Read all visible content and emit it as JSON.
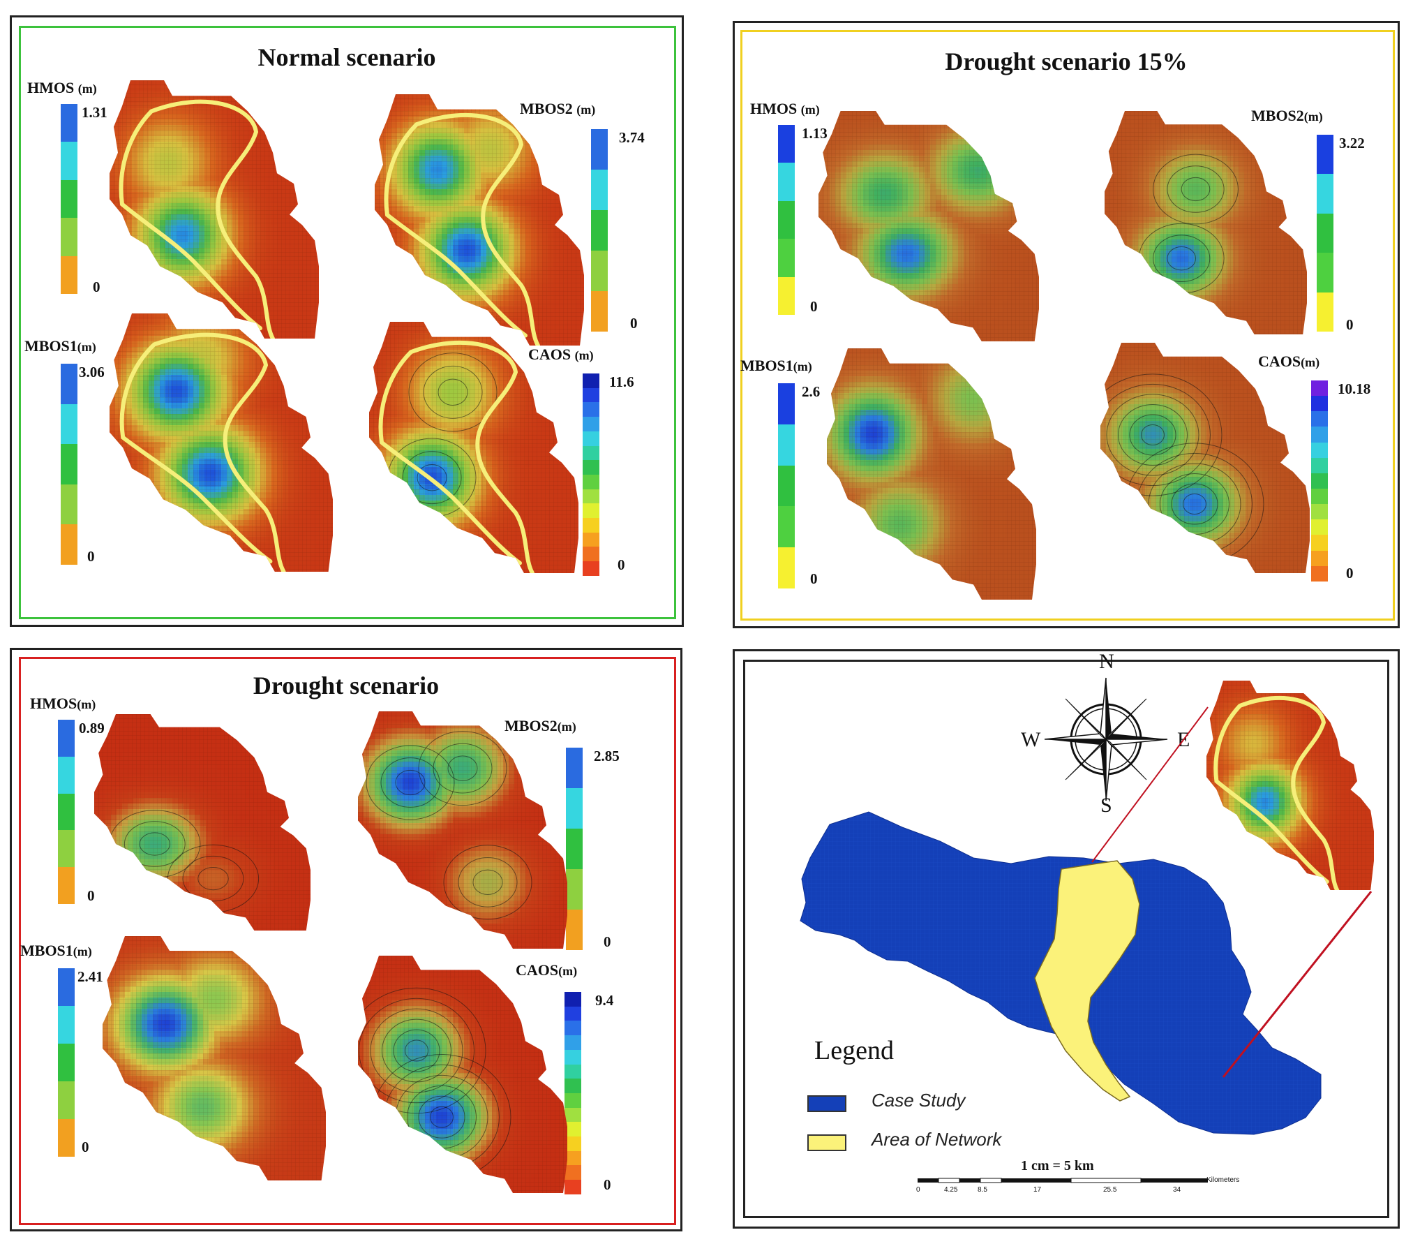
{
  "panels": {
    "normal": {
      "title": "Normal scenario",
      "border_color": "#3cc23c",
      "maps": [
        {
          "id": "hmos",
          "label": "HMOS",
          "unit": "(m)",
          "max": "1.31",
          "min": "0",
          "palette": "five"
        },
        {
          "id": "mbos2",
          "label": "MBOS2",
          "unit": "(m)",
          "max": "3.74",
          "min": "0",
          "palette": "five"
        },
        {
          "id": "mbos1",
          "label": "MBOS1",
          "unit": "(m)",
          "max": "3.06",
          "min": "0",
          "palette": "five"
        },
        {
          "id": "caos",
          "label": "CAOS",
          "unit": "(m)",
          "max": "11.6",
          "min": "0",
          "palette": "full"
        }
      ]
    },
    "drought15": {
      "title": "Drought scenario 15%",
      "border_color": "#f0d020",
      "maps": [
        {
          "id": "hmos",
          "label": "HMOS",
          "unit": "(m)",
          "max": "1.13",
          "min": "0",
          "palette": "five-yellow"
        },
        {
          "id": "mbos2",
          "label": "MBOS2",
          "unit": "(m)",
          "max": "3.22",
          "min": "0",
          "palette": "five-yellow"
        },
        {
          "id": "mbos1",
          "label": "MBOS1",
          "unit": "(m)",
          "max": "2.6",
          "min": "0",
          "palette": "five-yellow"
        },
        {
          "id": "caos",
          "label": "CAOS",
          "unit": "(m)",
          "max": "10.18",
          "min": "0",
          "palette": "full-violet"
        }
      ]
    },
    "drought": {
      "title": "Drought scenario",
      "border_color": "#d82020",
      "maps": [
        {
          "id": "hmos",
          "label": "HMOS",
          "unit": "(m)",
          "max": "0.89",
          "min": "0",
          "palette": "five"
        },
        {
          "id": "mbos2",
          "label": "MBOS2",
          "unit": "(m)",
          "max": "2.85",
          "min": "0",
          "palette": "five"
        },
        {
          "id": "mbos1",
          "label": "MBOS1",
          "unit": "(m)",
          "max": "2.41",
          "min": "0",
          "palette": "five"
        },
        {
          "id": "caos",
          "label": "CAOS",
          "unit": "(m)",
          "max": "9.4",
          "min": "0",
          "palette": "full"
        }
      ]
    },
    "location": {
      "compass": {
        "n": "N",
        "s": "S",
        "e": "E",
        "w": "W"
      },
      "legend": {
        "title": "Legend",
        "items": [
          {
            "label": "Case Study",
            "color": "#1440b8"
          },
          {
            "label": "Area of Network",
            "color": "#fbf27a"
          }
        ]
      },
      "scale": {
        "label": "1 cm = 5 km",
        "ticks": [
          "0",
          "4.25",
          "8.5",
          "17",
          "25.5",
          "34"
        ],
        "unit": "Kilometers"
      },
      "connector_color": "#c01020"
    }
  },
  "colors": {
    "map_red": "#c42a12",
    "map_orange": "#d8661e",
    "map_yellow": "#d8d040",
    "map_green": "#4cb84a",
    "map_blue": "#2060d8",
    "river": "#f6ef7a"
  }
}
